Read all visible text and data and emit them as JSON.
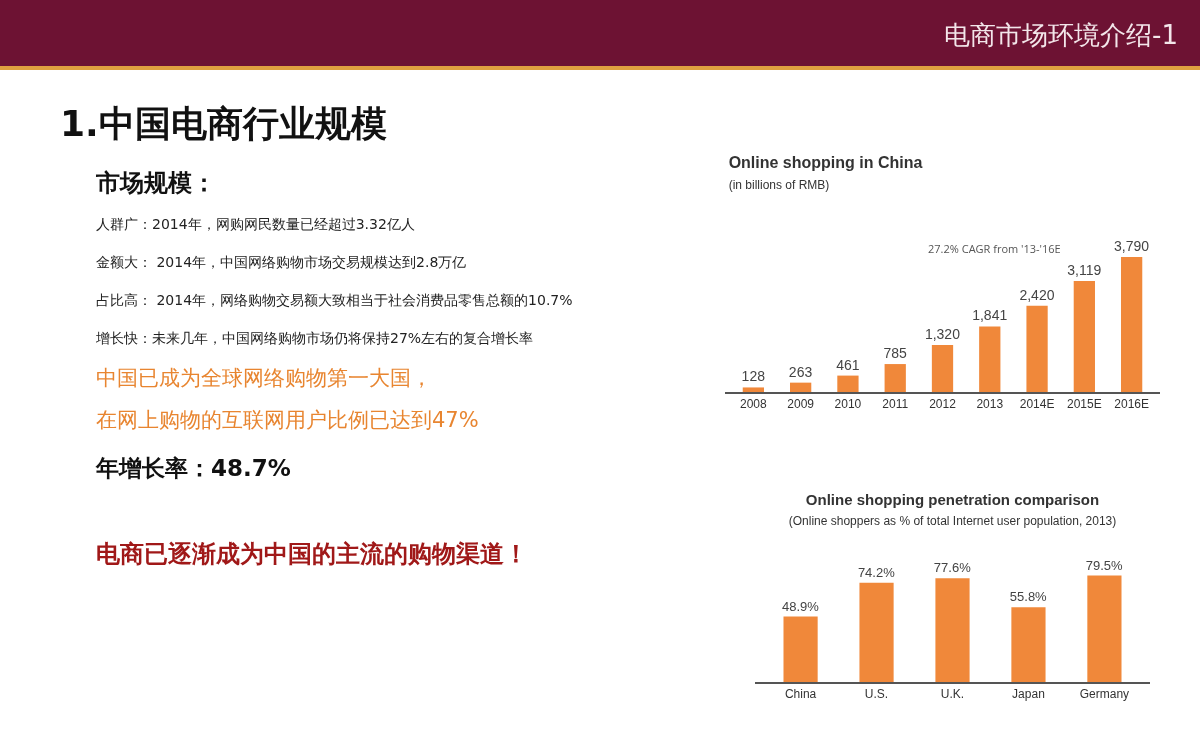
{
  "chart_data": [
    {
      "type": "other",
      "title": "电商市场环境介绍-1"
    },
    {
      "type": "other",
      "title": "1.中国电商行业规模",
      "subtitle": "市场规模：",
      "annotations": [
        "人群广：2014年，网购网民数量已经超过3.32亿人",
        "金额大： 2014年，中国网络购物市场交易规模达到2.8万亿",
        "占比高： 2014年，网络购物交易额大致相当于社会消费品零售总额的10.7%",
        "增长快：未来几年，中国网络购物市场仍将保持27%左右的复合增长率",
        "中国已成为全球网络购物第一大国，",
        "在网上购物的互联网用户比例已达到47%",
        "年增长率：48.7%",
        "电商已逐渐成为中国的主流的购物渠道！"
      ]
    },
    {
      "type": "bar",
      "title": "Online shopping in China",
      "subtitle": "(in billions of RMB)",
      "categories": [
        "2008",
        "2009",
        "2010",
        "2011",
        "2012",
        "2013",
        "2014E",
        "2015E",
        "2016E"
      ],
      "values": [
        128,
        263,
        461,
        785,
        1320,
        1841,
        2420,
        3119,
        3790
      ],
      "value_labels": [
        "128",
        "263",
        "461",
        "785",
        "1,320",
        "1,841",
        "2,420",
        "3,119",
        "3,790"
      ],
      "color": "#f0883a",
      "annotations": [
        "27.2% CAGR from '13-'16E"
      ],
      "grid": false,
      "legend": false
    },
    {
      "type": "bar",
      "title": "Online shopping penetration comparison",
      "subtitle": "(Online shoppers as % of total Internet user population, 2013)",
      "categories": [
        "China",
        "U.S.",
        "U.K.",
        "Japan",
        "Germany"
      ],
      "values": [
        48.9,
        74.2,
        77.6,
        55.8,
        79.5
      ],
      "value_labels": [
        "48.9%",
        "74.2%",
        "77.6%",
        "55.8%",
        "79.5%"
      ],
      "color": "#f0883a",
      "grid": false,
      "legend": false
    }
  ]
}
